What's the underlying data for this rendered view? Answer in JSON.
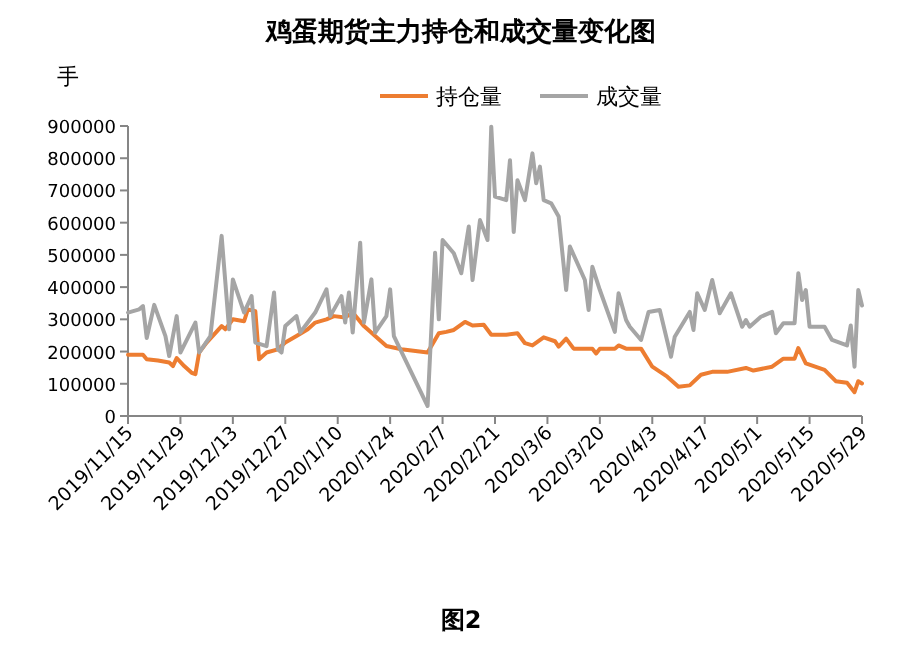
{
  "chart_data": {
    "type": "line",
    "title": "鸡蛋期货主力持仓和成交量变化图",
    "ylabel": "手",
    "annotations": [
      "图2"
    ],
    "legend": "top",
    "grid": false,
    "marker": "none",
    "xlim": [
      "2019-11-15",
      "2020-05-29"
    ],
    "xticks": [
      {
        "value": "2019-11-15",
        "label": "2019/11/15"
      },
      {
        "value": "2019-11-29",
        "label": "2019/11/29"
      },
      {
        "value": "2019-12-13",
        "label": "2019/12/13"
      },
      {
        "value": "2019-12-27",
        "label": "2019/12/27"
      },
      {
        "value": "2020-01-10",
        "label": "2020/1/10"
      },
      {
        "value": "2020-01-24",
        "label": "2020/1/24"
      },
      {
        "value": "2020-02-07",
        "label": "2020/2/7"
      },
      {
        "value": "2020-02-21",
        "label": "2020/2/21"
      },
      {
        "value": "2020-03-06",
        "label": "2020/3/6"
      },
      {
        "value": "2020-03-20",
        "label": "2020/3/20"
      },
      {
        "value": "2020-04-03",
        "label": "2020/4/3"
      },
      {
        "value": "2020-04-17",
        "label": "2020/4/17"
      },
      {
        "value": "2020-05-01",
        "label": "2020/5/1"
      },
      {
        "value": "2020-05-15",
        "label": "2020/5/15"
      },
      {
        "value": "2020-05-29",
        "label": "2020/5/29"
      }
    ],
    "ylim": [
      0,
      900000
    ],
    "yticks": [
      0,
      100000,
      200000,
      300000,
      400000,
      500000,
      600000,
      700000,
      800000,
      900000
    ],
    "series": [
      {
        "name": "持仓量",
        "color": "#ed7d31",
        "x": [
          "2019-11-15",
          "2019-11-19",
          "2019-11-20",
          "2019-11-23",
          "2019-11-26",
          "2019-11-27",
          "2019-11-28",
          "2019-11-30",
          "2019-12-02",
          "2019-12-03",
          "2019-12-04",
          "2019-12-06",
          "2019-12-10",
          "2019-12-11",
          "2019-12-13",
          "2019-12-16",
          "2019-12-17",
          "2019-12-19",
          "2019-12-20",
          "2019-12-22",
          "2019-12-25",
          "2019-12-27",
          "2019-12-30",
          "2020-01-02",
          "2020-01-04",
          "2020-01-07",
          "2020-01-09",
          "2020-01-12",
          "2020-01-14",
          "2020-01-17",
          "2020-01-20",
          "2020-01-23",
          "2020-01-27",
          "2020-02-03",
          "2020-02-06",
          "2020-02-08",
          "2020-02-10",
          "2020-02-13",
          "2020-02-15",
          "2020-02-18",
          "2020-02-20",
          "2020-02-24",
          "2020-02-27",
          "2020-02-29",
          "2020-03-02",
          "2020-03-05",
          "2020-03-08",
          "2020-03-09",
          "2020-03-11",
          "2020-03-13",
          "2020-03-18",
          "2020-03-19",
          "2020-03-20",
          "2020-03-24",
          "2020-03-25",
          "2020-03-27",
          "2020-03-31",
          "2020-04-03",
          "2020-04-07",
          "2020-04-10",
          "2020-04-13",
          "2020-04-16",
          "2020-04-19",
          "2020-04-23",
          "2020-04-28",
          "2020-04-30",
          "2020-05-05",
          "2020-05-08",
          "2020-05-11",
          "2020-05-12",
          "2020-05-14",
          "2020-05-19",
          "2020-05-22",
          "2020-05-25",
          "2020-05-27",
          "2020-05-28",
          "2020-05-29"
        ],
        "values": [
          190000,
          190000,
          176000,
          172000,
          166000,
          155000,
          180000,
          155000,
          134000,
          130000,
          197000,
          228000,
          279000,
          269000,
          300000,
          294000,
          331000,
          325000,
          176000,
          197000,
          207000,
          228000,
          248000,
          269000,
          290000,
          300000,
          310000,
          306000,
          321000,
          279000,
          248000,
          217000,
          207000,
          197000,
          257000,
          261000,
          267000,
          292000,
          281000,
          283000,
          252000,
          252000,
          257000,
          226000,
          219000,
          244000,
          232000,
          215000,
          240000,
          209000,
          209000,
          194000,
          209000,
          209000,
          219000,
          209000,
          209000,
          153000,
          122000,
          91000,
          95000,
          128000,
          137000,
          137000,
          149000,
          141000,
          153000,
          178000,
          178000,
          211000,
          163000,
          143000,
          108000,
          103000,
          74000,
          108000,
          101000
        ]
      },
      {
        "name": "成交量",
        "color": "#a5a5a5",
        "x": [
          "2019-11-15",
          "2019-11-18",
          "2019-11-19",
          "2019-11-20",
          "2019-11-22",
          "2019-11-25",
          "2019-11-26",
          "2019-11-28",
          "2019-11-29",
          "2019-12-03",
          "2019-12-04",
          "2019-12-07",
          "2019-12-10",
          "2019-12-12",
          "2019-12-13",
          "2019-12-16",
          "2019-12-18",
          "2019-12-19",
          "2019-12-22",
          "2019-12-24",
          "2019-12-25",
          "2019-12-26",
          "2019-12-27",
          "2019-12-30",
          "2019-12-31",
          "2020-01-04",
          "2020-01-07",
          "2020-01-08",
          "2020-01-11",
          "2020-01-12",
          "2020-01-13",
          "2020-01-14",
          "2020-01-16",
          "2020-01-17",
          "2020-01-19",
          "2020-01-20",
          "2020-01-23",
          "2020-01-24",
          "2020-01-25",
          "2020-02-03",
          "2020-02-05",
          "2020-02-06",
          "2020-02-07",
          "2020-02-10",
          "2020-02-12",
          "2020-02-14",
          "2020-02-15",
          "2020-02-17",
          "2020-02-19",
          "2020-02-20",
          "2020-02-21",
          "2020-02-24",
          "2020-02-25",
          "2020-02-26",
          "2020-02-27",
          "2020-02-29",
          "2020-03-02",
          "2020-03-03",
          "2020-03-04",
          "2020-03-05",
          "2020-03-07",
          "2020-03-09",
          "2020-03-11",
          "2020-03-12",
          "2020-03-16",
          "2020-03-17",
          "2020-03-18",
          "2020-03-20",
          "2020-03-24",
          "2020-03-25",
          "2020-03-27",
          "2020-03-28",
          "2020-03-31",
          "2020-04-02",
          "2020-04-05",
          "2020-04-08",
          "2020-04-09",
          "2020-04-13",
          "2020-04-14",
          "2020-04-15",
          "2020-04-17",
          "2020-04-19",
          "2020-04-21",
          "2020-04-24",
          "2020-04-27",
          "2020-04-28",
          "2020-04-29",
          "2020-05-02",
          "2020-05-05",
          "2020-05-06",
          "2020-05-08",
          "2020-05-11",
          "2020-05-12",
          "2020-05-13",
          "2020-05-14",
          "2020-05-15",
          "2020-05-19",
          "2020-05-21",
          "2020-05-25",
          "2020-05-26",
          "2020-05-27",
          "2020-05-28",
          "2020-05-29"
        ],
        "values": [
          321000,
          331000,
          341000,
          242000,
          345000,
          248000,
          186000,
          310000,
          197000,
          290000,
          197000,
          248000,
          559000,
          269000,
          424000,
          321000,
          372000,
          228000,
          217000,
          383000,
          207000,
          197000,
          279000,
          310000,
          259000,
          321000,
          393000,
          310000,
          372000,
          290000,
          383000,
          259000,
          538000,
          290000,
          424000,
          259000,
          310000,
          393000,
          248000,
          31000,
          507000,
          300000,
          546000,
          505000,
          443000,
          588000,
          422000,
          608000,
          546000,
          898000,
          681000,
          670000,
          794000,
          571000,
          732000,
          670000,
          815000,
          722000,
          774000,
          670000,
          660000,
          619000,
          391000,
          526000,
          422000,
          329000,
          463000,
          391000,
          261000,
          381000,
          298000,
          277000,
          236000,
          323000,
          329000,
          184000,
          246000,
          323000,
          267000,
          381000,
          329000,
          422000,
          319000,
          381000,
          277000,
          298000,
          277000,
          308000,
          323000,
          257000,
          288000,
          288000,
          443000,
          360000,
          391000,
          277000,
          277000,
          236000,
          219000,
          281000,
          153000,
          391000,
          343000
        ]
      }
    ]
  }
}
